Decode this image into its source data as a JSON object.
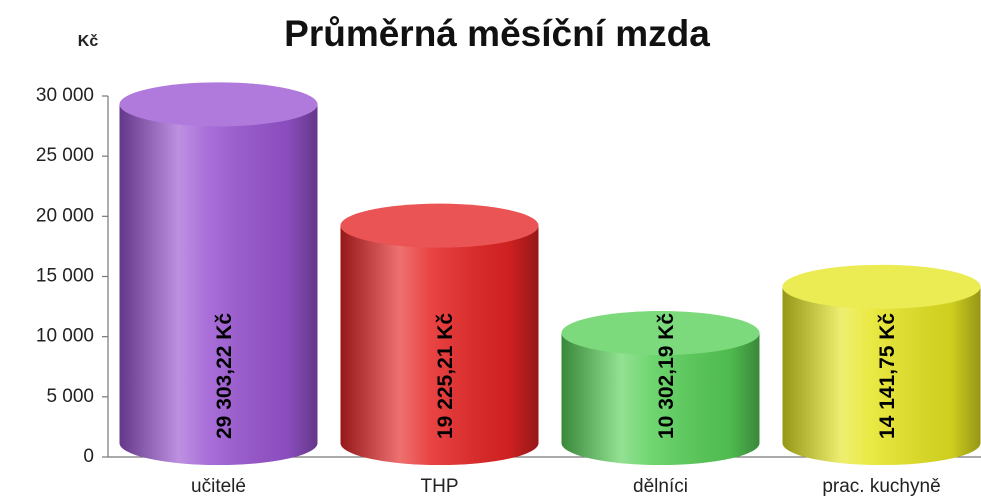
{
  "chart_data": {
    "type": "bar",
    "title": "Průměrná měsíční mzda",
    "y_label": "Kč",
    "categories": [
      "učitelé",
      "THP",
      "dělníci",
      "prac. kuchyně"
    ],
    "values": [
      29303.22,
      19225.21,
      10302.19,
      14141.75
    ],
    "value_labels": [
      "29 303,22 Kč",
      "19 225,21 Kč",
      "10 302,19 Kč",
      "14 141,75 Kč"
    ],
    "colors": [
      "#9a55d2",
      "#e62424",
      "#58d058",
      "#e6e623"
    ],
    "ylim": [
      0,
      30000
    ],
    "yticks": [
      0,
      {
        "value": 5000,
        "label": "5 000"
      },
      {
        "value": 10000,
        "label": "10 000"
      },
      {
        "value": 15000,
        "label": "15 000"
      },
      {
        "value": 20000,
        "label": "20 000"
      },
      {
        "value": 25000,
        "label": "25 000"
      },
      {
        "value": 30000,
        "label": "30 000"
      }
    ],
    "grid": false
  }
}
